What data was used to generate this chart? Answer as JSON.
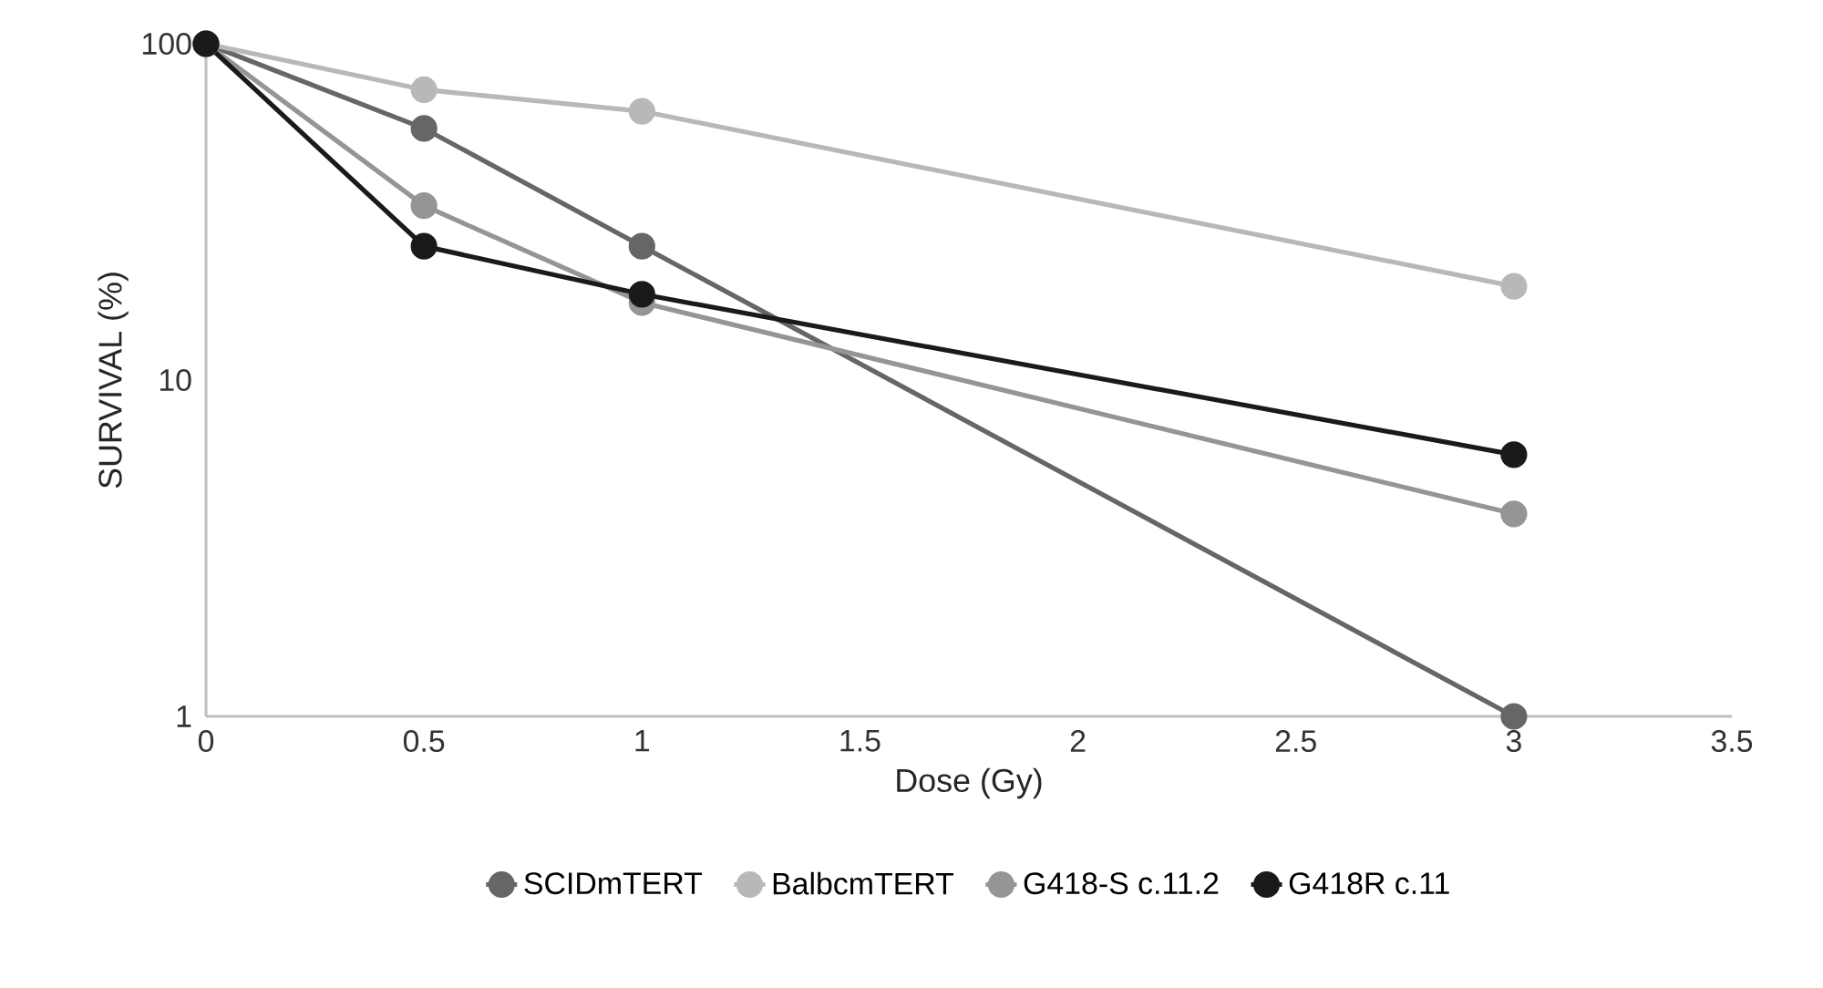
{
  "chart_data": {
    "type": "line",
    "xlabel": "Dose (Gy)",
    "ylabel": "SURVIVAL (%)",
    "log": "y",
    "x": [
      0,
      0.5,
      1,
      3
    ],
    "xlim": [
      0,
      3.5
    ],
    "xticks": [
      0,
      0.5,
      1,
      1.5,
      2,
      2.5,
      3,
      3.5
    ],
    "ylim": [
      1,
      100
    ],
    "yticks": [
      1,
      10,
      100
    ],
    "grid": false,
    "legend": "bottom",
    "marker": "circle",
    "line_style": "solid",
    "series": [
      {
        "name": "SCIDmTERT",
        "color": "#666666",
        "values": [
          100,
          56,
          25,
          1
        ]
      },
      {
        "name": "BalbcmTERT",
        "color": "#b8b8b8",
        "values": [
          100,
          73,
          63,
          19
        ]
      },
      {
        "name": "G418-S c.11.2",
        "color": "#959595",
        "values": [
          100,
          33,
          17,
          4
        ]
      },
      {
        "name": "G418R c.11",
        "color": "#1a1a1a",
        "values": [
          100,
          25,
          18,
          6
        ]
      }
    ]
  }
}
